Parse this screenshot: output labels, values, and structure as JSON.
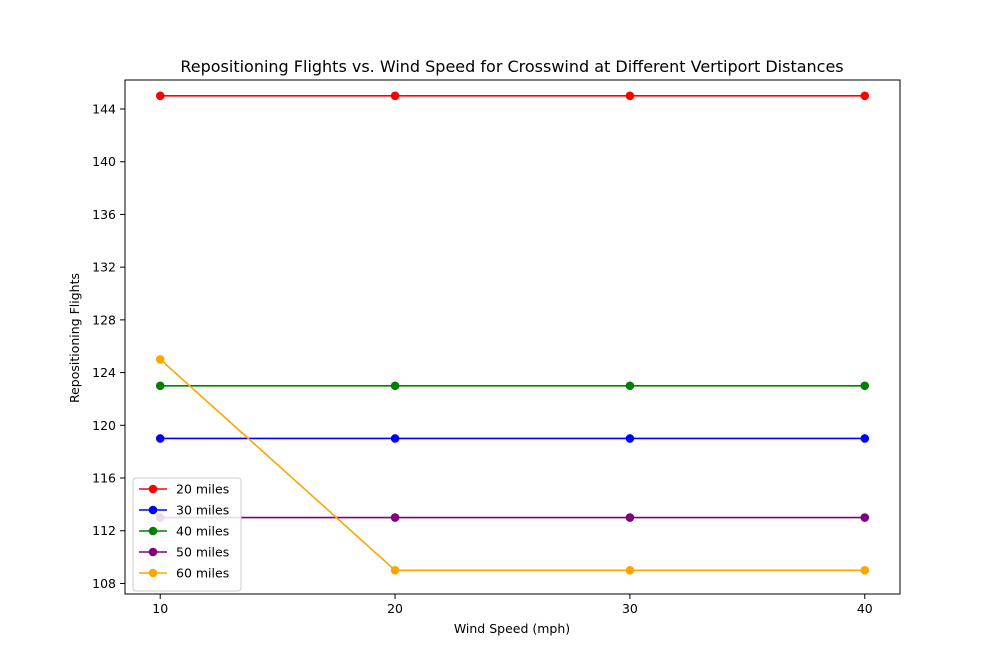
{
  "chart_data": {
    "type": "line",
    "title": "Repositioning Flights vs. Wind Speed for Crosswind at Different Vertiport Distances",
    "xlabel": "Wind Speed (mph)",
    "ylabel": "Repositioning Flights",
    "x": [
      10,
      20,
      30,
      40
    ],
    "xlim": [
      8.5,
      41.5
    ],
    "ylim": [
      107.2,
      146.2
    ],
    "yticks": [
      108,
      112,
      116,
      120,
      124,
      128,
      132,
      136,
      140,
      144
    ],
    "xticks": [
      10,
      20,
      30,
      40
    ],
    "grid": false,
    "legend_position": "lower-left",
    "series": [
      {
        "name": "20 miles",
        "color": "#ff0000",
        "values": [
          145,
          145,
          145,
          145
        ]
      },
      {
        "name": "30 miles",
        "color": "#0000ff",
        "values": [
          119,
          119,
          119,
          119
        ]
      },
      {
        "name": "40 miles",
        "color": "#008000",
        "values": [
          123,
          123,
          123,
          123
        ]
      },
      {
        "name": "50 miles",
        "color": "#800080",
        "values": [
          113,
          113,
          113,
          113
        ]
      },
      {
        "name": "60 miles",
        "color": "#ffa500",
        "values": [
          125,
          109,
          109,
          109
        ]
      }
    ]
  }
}
